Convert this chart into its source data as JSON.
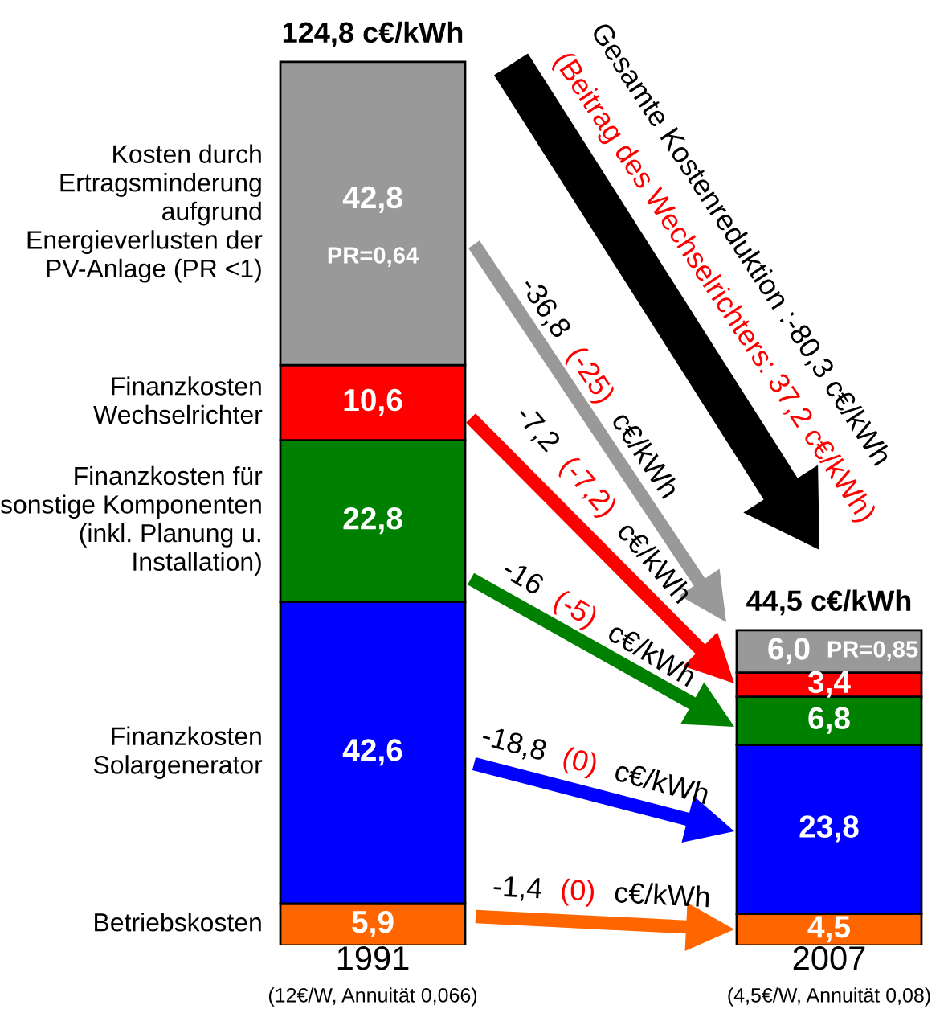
{
  "chart_data": {
    "type": "bar",
    "stacked": true,
    "categories": [
      "1991",
      "2007"
    ],
    "series": [
      {
        "name": "Betriebskosten",
        "color": "#ff6600",
        "values": [
          5.9,
          4.5
        ],
        "value_labels": [
          "5,9",
          "4,5"
        ]
      },
      {
        "name": "Finanzkosten\nSolargenerator",
        "color": "#0000ff",
        "values": [
          42.6,
          23.8
        ],
        "value_labels": [
          "42,6",
          "23,8"
        ]
      },
      {
        "name": "Finanzkosten für\nsonstige Komponenten\n(inkl. Planung u.\nInstallation)",
        "color": "#008000",
        "values": [
          22.8,
          6.8
        ],
        "value_labels": [
          "22,8",
          "6,8"
        ]
      },
      {
        "name": "Finanzkosten\nWechselrichter",
        "color": "#ff0000",
        "values": [
          10.6,
          3.4
        ],
        "value_labels": [
          "10,6",
          "3,4"
        ]
      },
      {
        "name": "Kosten durch\nErtragsminderung\naufgrund\nEnergieverlusten der\nPV-Anlage (PR <1)",
        "color": "#999999",
        "values": [
          42.8,
          6.0
        ],
        "value_labels": [
          "42,8",
          "6,0"
        ]
      }
    ],
    "totals": [
      "124,8 c€/kWh",
      "44,5 c€/kWh"
    ],
    "annotations": [
      "(12€/W, Annuität 0,066)",
      "(4,5€/W, Annuität 0,08)",
      "PR=0,64",
      "PR=0,85",
      "Gesamte Kostenreduktion :-80,3 c€/kWh",
      "(Beitrag des Wechselrichters: 37,2 c€/kWh)",
      "-36,8 (-25) c€/kWh",
      "-7,2 (-7,2) c€/kWh",
      "-16 (-5) c€/kWh",
      "-18,8 (0) c€/kWh",
      "-1,4 (0) c€/kWh"
    ],
    "tick_labels": "x",
    "legend": false,
    "grid": false
  }
}
